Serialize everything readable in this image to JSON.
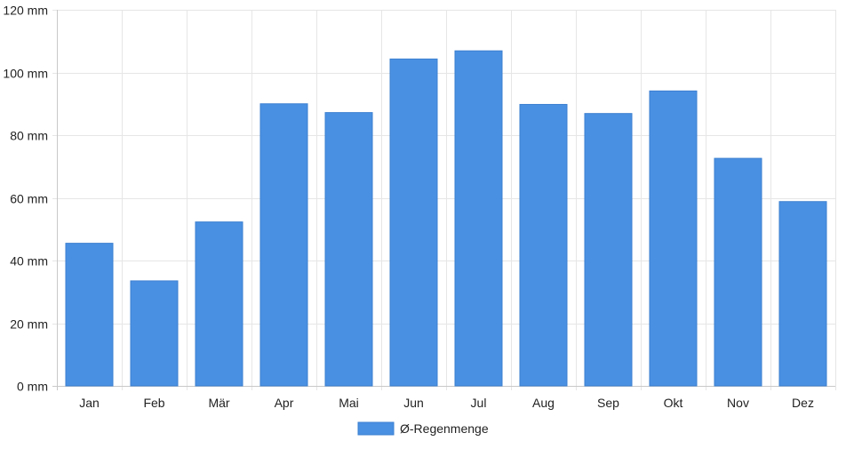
{
  "chart_data": {
    "type": "bar",
    "categories": [
      "Jan",
      "Feb",
      "Mär",
      "Apr",
      "Mai",
      "Jun",
      "Jul",
      "Aug",
      "Sep",
      "Okt",
      "Nov",
      "Dez"
    ],
    "series": [
      {
        "name": "Ø-Regenmenge",
        "values": [
          45.5,
          33.5,
          52.3,
          90.0,
          87.2,
          104.3,
          106.9,
          89.8,
          86.9,
          94.1,
          72.6,
          58.8
        ],
        "color": "#4a90e2"
      }
    ],
    "y_unit_suffix": " mm",
    "ylim": [
      0,
      120
    ],
    "y_ticks": [
      0,
      20,
      40,
      60,
      80,
      100,
      120
    ],
    "grid": true,
    "legend_position": "bottom"
  }
}
